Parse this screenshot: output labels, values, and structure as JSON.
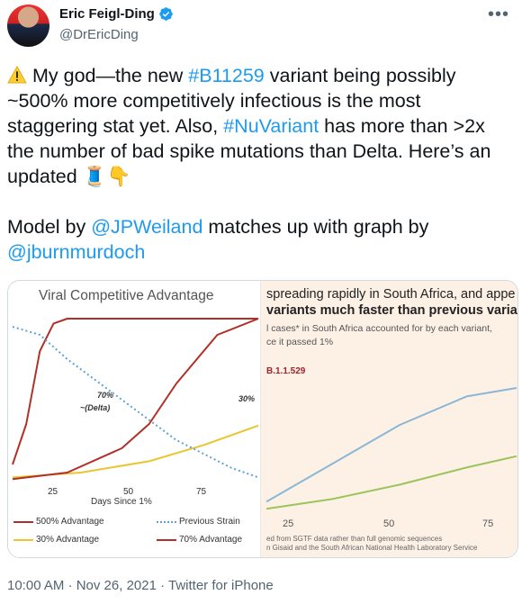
{
  "user": {
    "name": "Eric Feigl-Ding",
    "handle": "@DrEricDing"
  },
  "more_label": "•••",
  "tweet": {
    "p1_a": " My god—the new ",
    "tag1": "#B11259",
    "p1_b": " variant being possibly ~500% more competitively infectious is the most staggering stat yet. Also, ",
    "tag2": "#NuVariant",
    "p1_c": " has more than >2x the number of bad spike mutations than Delta. Here’s an updated ",
    "emoji_thread": "🧵",
    "emoji_point": "👇",
    "p2_a": "Model by ",
    "mention1": "@JPWeiland",
    "p2_b": " matches up with graph by ",
    "mention2": "@jburnmurdoch"
  },
  "chart_data": [
    {
      "type": "line",
      "title": "Viral Competitive Advantage",
      "xlabel": "Days Since 1%",
      "x_ticks": [
        "25",
        "50",
        "75"
      ],
      "annotations": [
        "70%",
        "~(Delta)",
        "30%"
      ],
      "series": [
        {
          "name": "500% Advantage",
          "color": "#b03028",
          "x": [
            0,
            5,
            10,
            15,
            20,
            30,
            90
          ],
          "y": [
            0.1,
            0.35,
            0.8,
            0.97,
            1.0,
            1.0,
            1.0
          ]
        },
        {
          "name": "30% Advantage",
          "color": "#e8c531",
          "x": [
            0,
            25,
            50,
            70,
            90
          ],
          "y": [
            0.02,
            0.05,
            0.12,
            0.22,
            0.34
          ]
        },
        {
          "name": "Previous Strain",
          "color": "#5aa3d6",
          "x": [
            0,
            10,
            20,
            40,
            60,
            80,
            90
          ],
          "y": [
            0.95,
            0.9,
            0.75,
            0.5,
            0.25,
            0.08,
            0.02
          ]
        },
        {
          "name": "70% Advantage",
          "color": "#b03028",
          "x": [
            0,
            20,
            40,
            50,
            60,
            75,
            90
          ],
          "y": [
            0.01,
            0.05,
            0.2,
            0.35,
            0.6,
            0.9,
            1.0
          ]
        }
      ]
    },
    {
      "type": "line",
      "title": "spreading rapidly in South Africa, and appe variants much faster than previous variant",
      "subtitle": "l cases* in South Africa accounted for by each variant, ce it passed 1%",
      "series_label": "B.1.1.529",
      "x_ticks": [
        "25",
        "50",
        "75"
      ],
      "source": "ed from SGTF data rather than full genomic sequences\nn Gisaid and the South African National Health Laboratory Service",
      "series": [
        {
          "name": "B.1.1.529",
          "color": "#8ab7d6",
          "x": [
            20,
            40,
            60,
            80,
            95
          ],
          "y": [
            0.08,
            0.35,
            0.62,
            0.82,
            0.88
          ]
        },
        {
          "name": "",
          "color": "#9cc45a",
          "x": [
            20,
            40,
            60,
            80,
            95
          ],
          "y": [
            0.03,
            0.1,
            0.2,
            0.32,
            0.4
          ]
        }
      ]
    }
  ],
  "footer": "10:00 AM · Nov 26, 2021 · Twitter for iPhone"
}
